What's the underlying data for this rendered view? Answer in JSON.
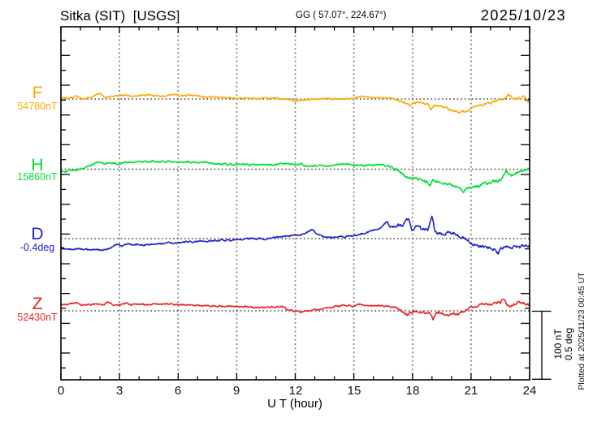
{
  "header": {
    "title": "Sitka (SIT)  [USGS]",
    "coords": "GG ( 57.07°, 224.67°)",
    "date": "2025/10/23"
  },
  "footer": {
    "plotted_at": "Plotted at 2025/11/23 00:45 UT"
  },
  "scalebar": {
    "nt_label": "100 nT",
    "deg_label": "0.5 deg"
  },
  "chart_data": {
    "type": "line",
    "title": "Sitka (SIT) [USGS] magnetogram 2025/10/23",
    "xlabel": "U T (hour)",
    "x_range": [
      0,
      24
    ],
    "x_ticks": [
      0,
      3,
      6,
      9,
      12,
      15,
      18,
      21,
      24
    ],
    "grid": true,
    "scale_per_division": {
      "nT": 100,
      "deg": 0.5
    },
    "series": [
      {
        "name": "F",
        "label": "F",
        "baseline_label": "54780nT",
        "baseline_value": 54780,
        "unit": "nT",
        "color": "#FFAA00",
        "offsets": [
          [
            0,
            2
          ],
          [
            0.4,
            1
          ],
          [
            0.8,
            5
          ],
          [
            1.1,
            0
          ],
          [
            1.5,
            2
          ],
          [
            2,
            9
          ],
          [
            2.3,
            2
          ],
          [
            2.8,
            5
          ],
          [
            3.2,
            6
          ],
          [
            3.6,
            4
          ],
          [
            4,
            5
          ],
          [
            4.5,
            6
          ],
          [
            5,
            4
          ],
          [
            5.5,
            5
          ],
          [
            5.8,
            7
          ],
          [
            6.2,
            4
          ],
          [
            6.6,
            6
          ],
          [
            7,
            5
          ],
          [
            7.5,
            3
          ],
          [
            8,
            3
          ],
          [
            8.5,
            2
          ],
          [
            9,
            1
          ],
          [
            10,
            1
          ],
          [
            11,
            1
          ],
          [
            11.5,
            0
          ],
          [
            12,
            -3
          ],
          [
            12.5,
            -1
          ],
          [
            13,
            0
          ],
          [
            14,
            0
          ],
          [
            14.5,
            0
          ],
          [
            15,
            1
          ],
          [
            15.4,
            4
          ],
          [
            15.8,
            3
          ],
          [
            16.2,
            2
          ],
          [
            16.6,
            1
          ],
          [
            17,
            0
          ],
          [
            17.5,
            -5
          ],
          [
            17.9,
            -10
          ],
          [
            18.1,
            -5
          ],
          [
            18.4,
            -6
          ],
          [
            18.8,
            -7
          ],
          [
            18.95,
            -18
          ],
          [
            19.1,
            -10
          ],
          [
            19.4,
            -11
          ],
          [
            19.7,
            -13
          ],
          [
            20,
            -16
          ],
          [
            20.3,
            -19
          ],
          [
            20.6,
            -19
          ],
          [
            20.9,
            -17
          ],
          [
            21.2,
            -12
          ],
          [
            21.5,
            -10
          ],
          [
            21.8,
            -7
          ],
          [
            22.1,
            -5
          ],
          [
            22.4,
            -2
          ],
          [
            22.7,
            0
          ],
          [
            22.9,
            7
          ],
          [
            23.1,
            1
          ],
          [
            23.35,
            0
          ],
          [
            23.6,
            2
          ],
          [
            23.75,
            4
          ],
          [
            23.85,
            -2
          ],
          [
            24,
            -5
          ]
        ]
      },
      {
        "name": "H",
        "label": "H",
        "baseline_label": "15860nT",
        "baseline_value": 15860,
        "unit": "nT",
        "color": "#00DD33",
        "offsets": [
          [
            0,
            -4
          ],
          [
            0.5,
            -2
          ],
          [
            1,
            0
          ],
          [
            1.5,
            6
          ],
          [
            1.9,
            11
          ],
          [
            2.2,
            8
          ],
          [
            2.5,
            10
          ],
          [
            3,
            7
          ],
          [
            3.3,
            11
          ],
          [
            3.6,
            10
          ],
          [
            4,
            12
          ],
          [
            4.3,
            11
          ],
          [
            4.7,
            12
          ],
          [
            5,
            11
          ],
          [
            5.5,
            12
          ],
          [
            6,
            11
          ],
          [
            6.5,
            11
          ],
          [
            7,
            10
          ],
          [
            7.5,
            10
          ],
          [
            8,
            8
          ],
          [
            8.5,
            7
          ],
          [
            9,
            7
          ],
          [
            9.5,
            7
          ],
          [
            10,
            6
          ],
          [
            10.5,
            7
          ],
          [
            11,
            7
          ],
          [
            11.5,
            8
          ],
          [
            12,
            7
          ],
          [
            12.3,
            8
          ],
          [
            12.6,
            4
          ],
          [
            13,
            5
          ],
          [
            13.5,
            5
          ],
          [
            14,
            6
          ],
          [
            14.35,
            8
          ],
          [
            14.7,
            7
          ],
          [
            15,
            6
          ],
          [
            15.5,
            6
          ],
          [
            16,
            6
          ],
          [
            16.5,
            7
          ],
          [
            16.8,
            4
          ],
          [
            17.1,
            0
          ],
          [
            17.4,
            -6
          ],
          [
            17.7,
            -12
          ],
          [
            17.9,
            -14
          ],
          [
            18.2,
            -12
          ],
          [
            18.5,
            -17
          ],
          [
            18.7,
            -18
          ],
          [
            18.9,
            -24
          ],
          [
            19.05,
            -17
          ],
          [
            19.3,
            -19
          ],
          [
            19.6,
            -20
          ],
          [
            19.9,
            -22
          ],
          [
            20.2,
            -24
          ],
          [
            20.45,
            -29
          ],
          [
            20.6,
            -32
          ],
          [
            20.8,
            -28
          ],
          [
            21,
            -26
          ],
          [
            21.3,
            -25
          ],
          [
            21.5,
            -24
          ],
          [
            21.7,
            -20
          ],
          [
            21.9,
            -22
          ],
          [
            22.1,
            -17
          ],
          [
            22.35,
            -18
          ],
          [
            22.6,
            -14
          ],
          [
            22.8,
            -1
          ],
          [
            23,
            -11
          ],
          [
            23.2,
            -8
          ],
          [
            23.5,
            -5
          ],
          [
            23.8,
            -1
          ],
          [
            24,
            1
          ]
        ]
      },
      {
        "name": "D",
        "label": "D",
        "baseline_label": "-0.4deg",
        "baseline_value": -0.4,
        "unit": "deg",
        "color": "#2222CC",
        "offsets": [
          [
            0,
            -0.066
          ],
          [
            0.3,
            -0.072
          ],
          [
            0.7,
            -0.078
          ],
          [
            1,
            -0.072
          ],
          [
            1.4,
            -0.084
          ],
          [
            1.8,
            -0.078
          ],
          [
            2.1,
            -0.084
          ],
          [
            2.5,
            -0.072
          ],
          [
            2.8,
            -0.042
          ],
          [
            3.1,
            -0.054
          ],
          [
            3.4,
            -0.036
          ],
          [
            3.7,
            -0.048
          ],
          [
            4,
            -0.042
          ],
          [
            4.4,
            -0.048
          ],
          [
            4.8,
            -0.036
          ],
          [
            5.2,
            -0.042
          ],
          [
            5.6,
            -0.03
          ],
          [
            6,
            -0.03
          ],
          [
            6.4,
            -0.024
          ],
          [
            6.8,
            -0.024
          ],
          [
            7.2,
            -0.018
          ],
          [
            7.6,
            -0.018
          ],
          [
            8,
            -0.012
          ],
          [
            8.5,
            -0.012
          ],
          [
            9,
            -0.006
          ],
          [
            9.5,
            0
          ],
          [
            10.5,
            0
          ],
          [
            11,
            0.012
          ],
          [
            11.5,
            0.018
          ],
          [
            12,
            0.024
          ],
          [
            12.4,
            0.03
          ],
          [
            12.9,
            0.066
          ],
          [
            13.2,
            0.024
          ],
          [
            13.6,
            0.012
          ],
          [
            14,
            0.006
          ],
          [
            14.35,
            0.012
          ],
          [
            14.8,
            0.018
          ],
          [
            15.2,
            0.024
          ],
          [
            15.7,
            0.048
          ],
          [
            16,
            0.06
          ],
          [
            16.4,
            0.084
          ],
          [
            16.7,
            0.126
          ],
          [
            16.85,
            0.084
          ],
          [
            17,
            0.09
          ],
          [
            17.2,
            0.096
          ],
          [
            17.5,
            0.096
          ],
          [
            17.8,
            0.15
          ],
          [
            17.95,
            0.06
          ],
          [
            18.1,
            0.078
          ],
          [
            18.3,
            0.108
          ],
          [
            18.45,
            0.072
          ],
          [
            18.6,
            0.06
          ],
          [
            18.8,
            0.066
          ],
          [
            19,
            0.168
          ],
          [
            19.15,
            0.048
          ],
          [
            19.3,
            0.036
          ],
          [
            19.6,
            0.03
          ],
          [
            19.9,
            0.054
          ],
          [
            20.1,
            0.042
          ],
          [
            20.4,
            0.018
          ],
          [
            20.7,
            0
          ],
          [
            20.9,
            -0.018
          ],
          [
            21.1,
            -0.042
          ],
          [
            21.4,
            -0.054
          ],
          [
            21.7,
            -0.066
          ],
          [
            22,
            -0.072
          ],
          [
            22.2,
            -0.078
          ],
          [
            22.4,
            -0.114
          ],
          [
            22.55,
            -0.072
          ],
          [
            22.8,
            -0.054
          ],
          [
            23,
            -0.066
          ],
          [
            23.2,
            -0.06
          ],
          [
            23.5,
            -0.066
          ],
          [
            23.7,
            -0.054
          ],
          [
            23.85,
            -0.06
          ],
          [
            24,
            -0.054
          ]
        ]
      },
      {
        "name": "Z",
        "label": "Z",
        "baseline_label": "52430nT",
        "baseline_value": 52430,
        "unit": "nT",
        "color": "#EE2222",
        "offsets": [
          [
            0,
            9
          ],
          [
            0.4,
            10
          ],
          [
            0.76,
            12
          ],
          [
            1,
            9
          ],
          [
            1.4,
            9
          ],
          [
            1.8,
            10
          ],
          [
            2.2,
            9
          ],
          [
            2.4,
            13
          ],
          [
            2.7,
            9
          ],
          [
            3,
            9
          ],
          [
            3.3,
            11
          ],
          [
            3.6,
            9
          ],
          [
            4,
            10
          ],
          [
            4.4,
            9
          ],
          [
            4.8,
            10
          ],
          [
            5.2,
            9
          ],
          [
            5.6,
            10
          ],
          [
            6,
            9
          ],
          [
            6.5,
            9
          ],
          [
            7,
            8
          ],
          [
            7.5,
            8
          ],
          [
            8,
            7
          ],
          [
            8.5,
            7
          ],
          [
            9,
            6
          ],
          [
            9.5,
            6
          ],
          [
            10,
            5
          ],
          [
            10.5,
            5
          ],
          [
            11,
            6
          ],
          [
            11.3,
            7
          ],
          [
            11.6,
            2
          ],
          [
            12,
            -1
          ],
          [
            12.3,
            -2
          ],
          [
            12.6,
            0
          ],
          [
            13,
            2
          ],
          [
            13.4,
            2
          ],
          [
            13.8,
            5
          ],
          [
            14.2,
            7
          ],
          [
            14.6,
            8
          ],
          [
            15,
            7
          ],
          [
            15.3,
            10
          ],
          [
            15.7,
            8
          ],
          [
            16,
            8
          ],
          [
            16.4,
            7
          ],
          [
            16.8,
            7
          ],
          [
            17.1,
            5
          ],
          [
            17.4,
            2
          ],
          [
            17.6,
            -4
          ],
          [
            17.75,
            -7
          ],
          [
            17.9,
            -2
          ],
          [
            18.1,
            0
          ],
          [
            18.3,
            -1
          ],
          [
            18.6,
            -2
          ],
          [
            18.9,
            -4
          ],
          [
            19.05,
            -14
          ],
          [
            19.2,
            -4
          ],
          [
            19.4,
            -2
          ],
          [
            19.6,
            -5
          ],
          [
            19.9,
            -6
          ],
          [
            20.1,
            -5
          ],
          [
            20.4,
            -4
          ],
          [
            20.7,
            0
          ],
          [
            21,
            5
          ],
          [
            21.3,
            7
          ],
          [
            21.6,
            10
          ],
          [
            21.9,
            10
          ],
          [
            22.2,
            11
          ],
          [
            22.5,
            12
          ],
          [
            22.65,
            18
          ],
          [
            22.8,
            12
          ],
          [
            23,
            6
          ],
          [
            23.2,
            10
          ],
          [
            23.4,
            13
          ],
          [
            23.6,
            11
          ],
          [
            23.8,
            10
          ],
          [
            24,
            8
          ]
        ]
      }
    ]
  }
}
